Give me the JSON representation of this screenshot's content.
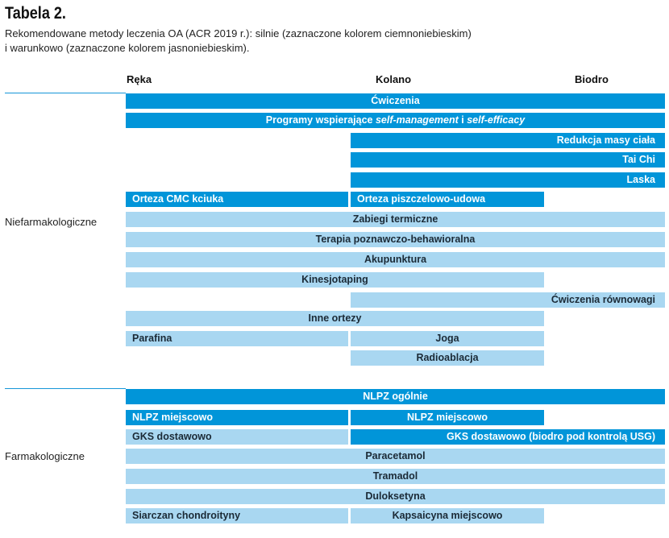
{
  "header": {
    "title": "Tabela 2.",
    "caption_line1": "Rekomendowane metody leczenia OA (ACR 2019 r.): silnie (zaznaczone kolorem ciemnoniebieskim)",
    "caption_line2": "i warunkowo (zaznaczone kolorem jasnoniebieskim)."
  },
  "columns": [
    "Ręka",
    "Kolano",
    "Biodro"
  ],
  "groups": {
    "nonpharm": "Niefarmakologiczne",
    "pharm": "Farmakologiczne"
  },
  "rows": {
    "cwiczenia": "Ćwiczenia",
    "programy_a": "Programy wspierające ",
    "programy_b": "self-management",
    "programy_c": " i ",
    "programy_d": "self-efficacy",
    "redukcja": "Redukcja masy ciała",
    "taichi": "Tai Chi",
    "laska": "Laska",
    "orteza_cmc": "Orteza CMC kciuka",
    "orteza_pu": "Orteza piszczelowo-udowa",
    "zabiegi": "Zabiegi termiczne",
    "terapia": "Terapia poznawczo-behawioralna",
    "akupunktura": "Akupunktura",
    "kinesjotaping": "Kinesjotaping",
    "cw_rownowagi": "Ćwiczenia równowagi",
    "inne_ortezy": "Inne ortezy",
    "parafina": "Parafina",
    "joga": "Joga",
    "radioablacja": "Radioablacja",
    "nlpz_ogolnie": "NLPZ ogólnie",
    "nlpz_miejsc_reka": "NLPZ miejscowo",
    "nlpz_miejsc_kolano": "NLPZ miejscowo",
    "gks_reka": "GKS dostawowo",
    "gks_kb": "GKS dostawowo (biodro pod kontrolą USG)",
    "paracetamol": "Paracetamol",
    "tramadol": "Tramadol",
    "duloksetyna": "Duloksetyna",
    "siarczan": "Siarczan chondroityny",
    "kapsaicyna": "Kapsaicyna miejscowo"
  },
  "legend_colors": {
    "strong": "#0195d9",
    "conditional": "#a9d7f1"
  }
}
